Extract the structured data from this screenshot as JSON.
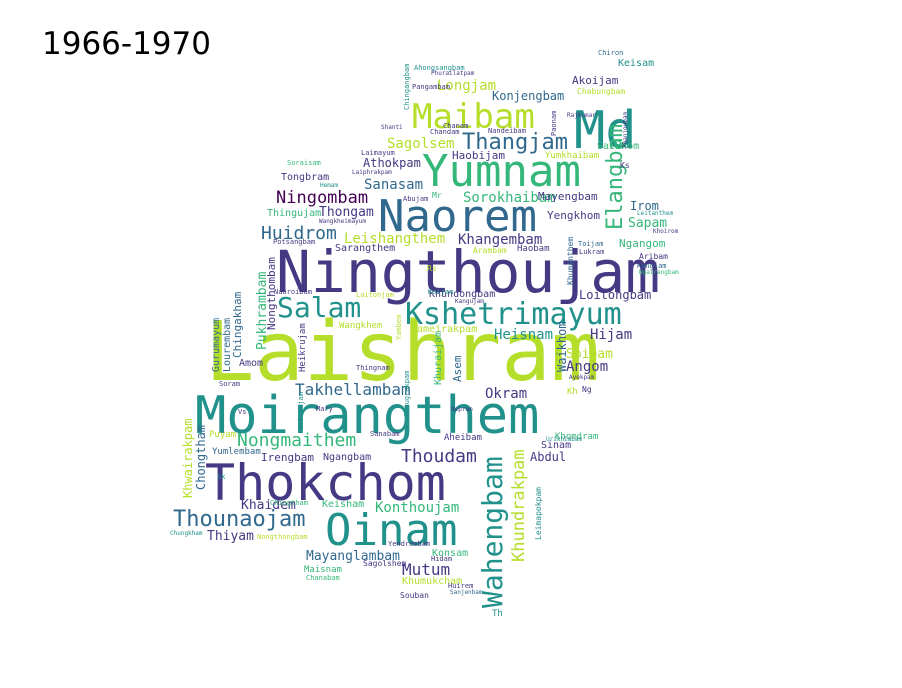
{
  "title": "1966-1970",
  "palette": {
    "lime": "#b5de2b",
    "green": "#35b779",
    "teal": "#21918c",
    "blue": "#31688e",
    "indigo": "#443983",
    "purple": "#440154",
    "yellow": "#fde725"
  },
  "words": [
    {
      "text": "Laishram",
      "color": "lime",
      "rank": 1
    },
    {
      "text": "Moirangthem",
      "color": "teal",
      "rank": 2
    },
    {
      "text": "Ningthoujam",
      "color": "indigo",
      "rank": 3
    },
    {
      "text": "Thokchom",
      "color": "indigo",
      "rank": 4
    },
    {
      "text": "Oinam",
      "color": "teal",
      "rank": 5
    },
    {
      "text": "Md",
      "color": "teal",
      "rank": 6
    },
    {
      "text": "Yumnam",
      "color": "green",
      "rank": 7
    },
    {
      "text": "Naorem",
      "color": "blue",
      "rank": 8
    },
    {
      "text": "Maibam",
      "color": "lime",
      "rank": 9
    },
    {
      "text": "Kshetrimayum",
      "color": "teal",
      "rank": 10
    },
    {
      "text": "Wahengbam",
      "color": "teal",
      "rank": 11
    },
    {
      "text": "Salam",
      "color": "teal",
      "rank": 12
    },
    {
      "text": "Thangjam",
      "color": "blue",
      "rank": 13
    },
    {
      "text": "Elangbam",
      "color": "green",
      "rank": 14
    },
    {
      "text": "Thounaojam",
      "color": "blue",
      "rank": 15
    },
    {
      "text": "Nongmaithem",
      "color": "green",
      "rank": 16
    },
    {
      "text": "Thoudam",
      "color": "indigo",
      "rank": 17
    },
    {
      "text": "Huidrom",
      "color": "blue",
      "rank": 18
    },
    {
      "text": "Khundrakpam",
      "color": "lime",
      "rank": 19
    },
    {
      "text": "Takhellambam",
      "color": "blue",
      "rank": 20
    },
    {
      "text": "Ningombam",
      "color": "purple",
      "rank": 21
    },
    {
      "text": "Konthoujam",
      "color": "green",
      "rank": 22
    },
    {
      "text": "Longjam",
      "color": "lime",
      "rank": 23
    },
    {
      "text": "Sagolsem",
      "color": "lime",
      "rank": 24
    },
    {
      "text": "Mayanglambam",
      "color": "blue",
      "rank": 25
    },
    {
      "text": "Mutum",
      "color": "indigo",
      "rank": 26
    },
    {
      "text": "Okram",
      "color": "indigo",
      "rank": 27
    },
    {
      "text": "Angom",
      "color": "indigo",
      "rank": 28
    },
    {
      "text": "Hijam",
      "color": "indigo",
      "rank": 29
    },
    {
      "text": "Khangembam",
      "color": "indigo",
      "rank": 30
    },
    {
      "text": "Sanasam",
      "color": "blue",
      "rank": 31
    },
    {
      "text": "Sorokhaibam",
      "color": "green",
      "rank": 32
    },
    {
      "text": "Heisnam",
      "color": "teal",
      "rank": 33
    },
    {
      "text": "Soibam",
      "color": "lime",
      "rank": 34
    },
    {
      "text": "Leishangthem",
      "color": "lime",
      "rank": 35
    },
    {
      "text": "Konjengbam",
      "color": "blue",
      "rank": 36
    },
    {
      "text": "Thongam",
      "color": "indigo",
      "rank": 37
    },
    {
      "text": "Sapam",
      "color": "green",
      "rank": 38
    },
    {
      "text": "Loitongbam",
      "color": "indigo",
      "rank": 39
    },
    {
      "text": "Khaidem",
      "color": "indigo",
      "rank": 40
    },
    {
      "text": "Thiyam",
      "color": "indigo",
      "rank": 41
    },
    {
      "text": "Irengbam",
      "color": "indigo",
      "rank": 42
    },
    {
      "text": "Abdul",
      "color": "indigo",
      "rank": 43
    },
    {
      "text": "Yengkhom",
      "color": "indigo",
      "rank": 44
    },
    {
      "text": "Pukhrambam",
      "color": "green",
      "rank": 45
    },
    {
      "text": "Chongtham",
      "color": "blue",
      "rank": 46
    },
    {
      "text": "Akoijam",
      "color": "indigo",
      "rank": 47
    },
    {
      "text": "Athokpam",
      "color": "indigo",
      "rank": 48
    },
    {
      "text": "Mayengbam",
      "color": "indigo",
      "rank": 49
    },
    {
      "text": "Khwairakpam",
      "color": "lime",
      "rank": 50
    },
    {
      "text": "Ngangom",
      "color": "green",
      "rank": 51
    },
    {
      "text": "Irom",
      "color": "blue",
      "rank": 52
    },
    {
      "text": "Haobijam",
      "color": "indigo",
      "rank": 53
    },
    {
      "text": "Waikhom",
      "color": "blue",
      "rank": 54
    },
    {
      "text": "Keisham",
      "color": "green",
      "rank": 55
    },
    {
      "text": "Konsam",
      "color": "green",
      "rank": 56
    },
    {
      "text": "Khumukcham",
      "color": "lime",
      "rank": 57
    },
    {
      "text": "Ngangbam",
      "color": "indigo",
      "rank": 58
    },
    {
      "text": "Khundongbam",
      "color": "indigo",
      "rank": 59
    },
    {
      "text": "Nameirakpam",
      "color": "lime",
      "rank": 60
    },
    {
      "text": "Wangkhem",
      "color": "lime",
      "rank": 61
    },
    {
      "text": "Tongbram",
      "color": "indigo",
      "rank": 62
    },
    {
      "text": "Lourembam",
      "color": "blue",
      "rank": 63
    },
    {
      "text": "Gurumayum",
      "color": "blue",
      "rank": 64
    },
    {
      "text": "Chingakham",
      "color": "blue",
      "rank": 65
    },
    {
      "text": "Nongthombam",
      "color": "indigo",
      "rank": 66
    },
    {
      "text": "Heikrujam",
      "color": "indigo",
      "rank": 67
    },
    {
      "text": "Sarangthem",
      "color": "indigo",
      "rank": 68
    },
    {
      "text": "Maisnam",
      "color": "green",
      "rank": 69
    },
    {
      "text": "Yumkhaibam",
      "color": "lime",
      "rank": 70
    },
    {
      "text": "Saikhom",
      "color": "green",
      "rank": 71
    },
    {
      "text": "Keisam",
      "color": "teal",
      "rank": 72
    },
    {
      "text": "Sinam",
      "color": "indigo",
      "rank": 73
    },
    {
      "text": "Khuraijam",
      "color": "green",
      "rank": 74
    },
    {
      "text": "Asem",
      "color": "blue",
      "rank": 75
    },
    {
      "text": "Thingujam",
      "color": "green",
      "rank": 76
    },
    {
      "text": "Yumlembam",
      "color": "blue",
      "rank": 77
    },
    {
      "text": "Puyam",
      "color": "lime",
      "rank": 78
    },
    {
      "text": "Amom",
      "color": "indigo",
      "rank": 79
    },
    {
      "text": "Khomdram",
      "color": "green",
      "rank": 80
    },
    {
      "text": "Aheibam",
      "color": "indigo",
      "rank": 81
    },
    {
      "text": "Sagolshem",
      "color": "indigo",
      "rank": 82
    },
    {
      "text": "Souban",
      "color": "indigo",
      "rank": 83
    },
    {
      "text": "Huirem",
      "color": "indigo",
      "rank": 84
    },
    {
      "text": "Ahongsangbam",
      "color": "teal",
      "rank": 85
    },
    {
      "text": "Chingangbam",
      "color": "teal",
      "rank": 86
    },
    {
      "text": "Chanam",
      "color": "indigo",
      "rank": 87
    },
    {
      "text": "Nandeibam",
      "color": "indigo",
      "rank": 88
    },
    {
      "text": "Pangambam",
      "color": "indigo",
      "rank": 89
    },
    {
      "text": "Chabungbam",
      "color": "lime",
      "rank": 90
    },
    {
      "text": "Chiron",
      "color": "blue",
      "rank": 91
    },
    {
      "text": "Laimayum",
      "color": "indigo",
      "rank": 92
    },
    {
      "text": "Laiphrakpam",
      "color": "indigo",
      "rank": 93
    },
    {
      "text": "Soraisam",
      "color": "green",
      "rank": 94
    },
    {
      "text": "Abujam",
      "color": "indigo",
      "rank": 95
    },
    {
      "text": "Potsangbam",
      "color": "indigo",
      "rank": 96
    },
    {
      "text": "Khumanthem",
      "color": "blue",
      "rank": 97
    },
    {
      "text": "Aribam",
      "color": "indigo",
      "rank": 98
    },
    {
      "text": "Kangjam",
      "color": "blue",
      "rank": 99
    },
    {
      "text": "Ngairangbam",
      "color": "green",
      "rank": 100
    },
    {
      "text": "Leitanthem",
      "color": "teal",
      "rank": 101
    },
    {
      "text": "Khoirom",
      "color": "indigo",
      "rank": 102
    },
    {
      "text": "Toijam",
      "color": "blue",
      "rank": 103
    },
    {
      "text": "Lukram",
      "color": "indigo",
      "rank": 104
    },
    {
      "text": "Arambam",
      "color": "lime",
      "rank": 105
    },
    {
      "text": "Haobam",
      "color": "indigo",
      "rank": 106
    },
    {
      "text": "Koijam",
      "color": "teal",
      "rank": 107
    },
    {
      "text": "Kangujam",
      "color": "indigo",
      "rank": 108
    },
    {
      "text": "Laitonjam",
      "color": "lime",
      "rank": 109
    },
    {
      "text": "Yambem",
      "color": "lime",
      "rank": 110
    },
    {
      "text": "Thingnam",
      "color": "indigo",
      "rank": 111
    },
    {
      "text": "Shougrakpam",
      "color": "teal",
      "rank": 112
    },
    {
      "text": "Leimapokpam",
      "color": "teal",
      "rank": 113
    },
    {
      "text": "Ayekpam",
      "color": "indigo",
      "rank": 114
    },
    {
      "text": "Ng",
      "color": "indigo",
      "rank": 115
    },
    {
      "text": "Kh",
      "color": "lime",
      "rank": 116
    },
    {
      "text": "Th",
      "color": "teal",
      "rank": 117
    },
    {
      "text": "Sanabam",
      "color": "indigo",
      "rank": 118
    },
    {
      "text": "Mary",
      "color": "indigo",
      "rank": 119
    },
    {
      "text": "Vs",
      "color": "indigo",
      "rank": 120
    },
    {
      "text": "Soram",
      "color": "indigo",
      "rank": 121
    },
    {
      "text": "Sk",
      "color": "teal",
      "rank": 122
    },
    {
      "text": "Chungkham",
      "color": "teal",
      "rank": 123
    },
    {
      "text": "Hidam",
      "color": "indigo",
      "rank": 124
    },
    {
      "text": "Yendrembam",
      "color": "indigo",
      "rank": 125
    },
    {
      "text": "Chanabam",
      "color": "green",
      "rank": 126
    },
    {
      "text": "Nongthongbam",
      "color": "lime",
      "rank": 127
    },
    {
      "text": "Chingtham",
      "color": "green",
      "rank": 128
    },
    {
      "text": "Phanjoubam",
      "color": "indigo",
      "rank": 129
    },
    {
      "text": "Shanti",
      "color": "indigo",
      "rank": 130
    },
    {
      "text": "Chandam",
      "color": "indigo",
      "rank": 131
    },
    {
      "text": "Hemam",
      "color": "teal",
      "rank": 132
    },
    {
      "text": "Mr",
      "color": "green",
      "rank": 133
    },
    {
      "text": "Rs",
      "color": "lime",
      "rank": 134
    },
    {
      "text": "Ks",
      "color": "indigo",
      "rank": 135
    },
    {
      "text": "Paonam",
      "color": "indigo",
      "rank": 136
    },
    {
      "text": "Naoroibam",
      "color": "indigo",
      "rank": 137
    },
    {
      "text": "Urikhimbam",
      "color": "teal",
      "rank": 138
    },
    {
      "text": "Lairenjam",
      "color": "teal",
      "rank": 139
    },
    {
      "text": "Sanjenbam",
      "color": "blue",
      "rank": 140
    },
    {
      "text": "Rajkumar",
      "color": "indigo",
      "rank": 141
    },
    {
      "text": "Wangkheimayum",
      "color": "indigo",
      "rank": 142
    },
    {
      "text": "Phurailatpam",
      "color": "indigo",
      "rank": 143
    },
    {
      "text": "Nepram",
      "color": "indigo",
      "rank": 144
    }
  ]
}
